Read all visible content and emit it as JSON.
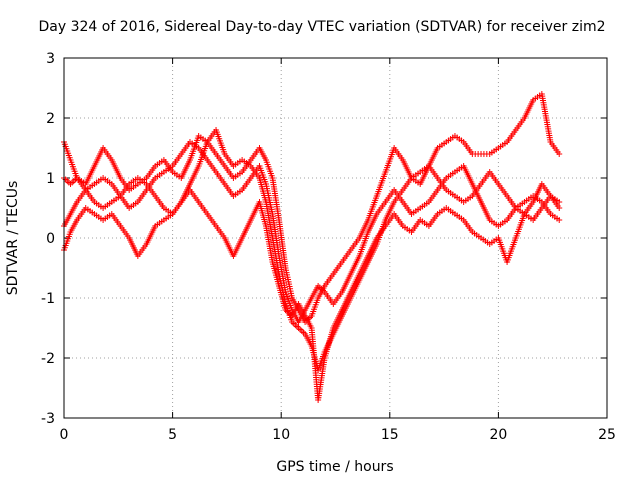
{
  "chart_data": {
    "type": "scatter",
    "title": "Day 324 of 2016, Sidereal Day-to-day VTEC variation (SDTVAR) for receiver zim2",
    "xlabel": "GPS time / hours",
    "ylabel": "SDTVAR / TECUs",
    "xlim": [
      0,
      25
    ],
    "ylim": [
      -3,
      3
    ],
    "xticks": [
      0,
      5,
      10,
      15,
      20,
      25
    ],
    "yticks": [
      -3,
      -2,
      -1,
      0,
      1,
      2,
      3
    ],
    "grid": true,
    "marker": "plus",
    "series_color": "#ff0000",
    "series": [
      {
        "x": [
          0.0,
          0.3,
          0.6,
          1.0,
          1.4,
          1.8,
          2.2,
          2.6,
          3.0,
          3.4,
          3.8,
          4.2,
          4.6,
          5.0,
          5.4,
          5.8,
          6.2,
          6.6,
          7.0,
          7.4,
          7.8,
          8.2,
          8.6,
          9.0,
          9.3,
          9.6,
          9.9,
          10.2,
          10.5,
          10.8,
          11.1,
          11.4,
          11.7,
          12.0,
          12.4,
          12.8,
          13.2,
          13.6,
          14.0,
          14.4,
          14.8,
          15.2,
          15.6,
          16.0,
          16.4,
          16.8,
          17.2,
          17.6,
          18.0,
          18.4,
          18.8,
          19.2,
          19.6,
          20.0,
          20.4,
          20.8,
          21.2,
          21.6,
          22.0,
          22.4,
          22.8
        ],
        "y": [
          1.6,
          1.3,
          1.0,
          0.9,
          1.2,
          1.5,
          1.3,
          1.0,
          0.8,
          0.9,
          1.0,
          1.2,
          1.3,
          1.1,
          1.0,
          1.3,
          1.7,
          1.6,
          1.4,
          1.2,
          1.0,
          1.1,
          1.3,
          1.5,
          1.3,
          1.0,
          0.3,
          -0.5,
          -1.0,
          -1.2,
          -1.4,
          -1.3,
          -1.0,
          -0.8,
          -0.6,
          -0.4,
          -0.2,
          0.0,
          0.3,
          0.7,
          1.1,
          1.5,
          1.3,
          1.0,
          0.9,
          1.2,
          1.5,
          1.6,
          1.7,
          1.6,
          1.4,
          1.4,
          1.4,
          1.5,
          1.6,
          1.8,
          2.0,
          2.3,
          2.4,
          1.6,
          1.4
        ]
      },
      {
        "x": [
          0.0,
          0.3,
          0.6,
          1.0,
          1.4,
          1.8,
          2.2,
          2.6,
          3.0,
          3.4,
          3.8,
          4.2,
          4.6,
          5.0,
          5.4,
          5.8,
          6.2,
          6.6,
          7.0,
          7.4,
          7.8,
          8.2,
          8.6,
          9.0,
          9.3,
          9.6,
          9.9,
          10.2,
          10.5,
          10.8,
          11.1,
          11.4,
          11.7,
          12.0,
          12.4,
          12.8,
          13.2,
          13.6,
          14.0,
          14.4,
          14.8,
          15.2,
          15.6,
          16.0,
          16.4,
          16.8,
          17.2,
          17.6,
          18.0,
          18.4,
          18.8,
          19.2,
          19.6,
          20.0,
          20.4,
          20.8,
          21.2,
          21.6,
          22.0,
          22.4,
          22.8
        ],
        "y": [
          1.0,
          0.9,
          1.0,
          0.8,
          0.6,
          0.5,
          0.6,
          0.7,
          0.9,
          1.0,
          0.9,
          0.7,
          0.5,
          0.4,
          0.6,
          0.9,
          1.2,
          1.6,
          1.8,
          1.4,
          1.2,
          1.3,
          1.2,
          1.0,
          0.6,
          0.0,
          -0.6,
          -1.1,
          -1.4,
          -1.5,
          -1.6,
          -1.8,
          -2.2,
          -1.9,
          -1.6,
          -1.3,
          -1.0,
          -0.7,
          -0.4,
          -0.1,
          0.3,
          0.6,
          0.8,
          1.0,
          1.1,
          1.2,
          1.0,
          0.8,
          0.7,
          0.6,
          0.7,
          0.9,
          1.1,
          0.9,
          0.7,
          0.5,
          0.6,
          0.7,
          0.6,
          0.4,
          0.3
        ]
      },
      {
        "x": [
          0.0,
          0.3,
          0.6,
          1.0,
          1.4,
          1.8,
          2.2,
          2.6,
          3.0,
          3.4,
          3.8,
          4.2,
          4.6,
          5.0,
          5.4,
          5.8,
          6.2,
          6.6,
          7.0,
          7.4,
          7.8,
          8.2,
          8.6,
          9.0,
          9.3,
          9.6,
          9.9,
          10.2,
          10.5,
          10.8,
          11.1,
          11.4,
          11.7,
          12.0,
          12.4,
          12.8,
          13.2,
          13.6,
          14.0,
          14.4,
          14.8,
          15.2,
          15.6,
          16.0,
          16.4,
          16.8,
          17.2,
          17.6,
          18.0,
          18.4,
          18.8,
          19.2,
          19.6,
          20.0,
          20.4,
          20.8,
          21.2,
          21.6,
          22.0,
          22.4,
          22.8
        ],
        "y": [
          0.2,
          0.4,
          0.6,
          0.8,
          0.9,
          1.0,
          0.9,
          0.7,
          0.5,
          0.6,
          0.8,
          1.0,
          1.1,
          1.2,
          1.4,
          1.6,
          1.5,
          1.3,
          1.1,
          0.9,
          0.7,
          0.8,
          1.0,
          1.2,
          0.9,
          0.4,
          -0.3,
          -0.9,
          -1.2,
          -1.4,
          -1.2,
          -1.0,
          -0.8,
          -0.9,
          -1.1,
          -0.9,
          -0.6,
          -0.3,
          0.1,
          0.4,
          0.6,
          0.8,
          0.6,
          0.4,
          0.5,
          0.6,
          0.8,
          1.0,
          1.1,
          1.2,
          0.9,
          0.6,
          0.3,
          0.2,
          0.3,
          0.5,
          0.4,
          0.3,
          0.5,
          0.7,
          0.6
        ]
      },
      {
        "x": [
          0.0,
          0.3,
          0.6,
          1.0,
          1.4,
          1.8,
          2.2,
          2.6,
          3.0,
          3.4,
          3.8,
          4.2,
          4.6,
          5.0,
          5.4,
          5.8,
          6.2,
          6.6,
          7.0,
          7.4,
          7.8,
          8.2,
          8.6,
          9.0,
          9.3,
          9.6,
          9.9,
          10.2,
          10.5,
          10.8,
          11.1,
          11.4,
          11.7,
          12.0,
          12.4,
          12.8,
          13.2,
          13.6,
          14.0,
          14.4,
          14.8,
          15.2,
          15.6,
          16.0,
          16.4,
          16.8,
          17.2,
          17.6,
          18.0,
          18.4,
          18.8,
          19.2,
          19.6,
          20.0,
          20.4,
          20.8,
          21.2,
          21.6,
          22.0,
          22.4,
          22.8
        ],
        "y": [
          -0.2,
          0.1,
          0.3,
          0.5,
          0.4,
          0.3,
          0.4,
          0.2,
          0.0,
          -0.3,
          -0.1,
          0.2,
          0.3,
          0.4,
          0.6,
          0.8,
          0.6,
          0.4,
          0.2,
          0.0,
          -0.3,
          0.0,
          0.3,
          0.6,
          0.2,
          -0.4,
          -0.8,
          -1.2,
          -1.3,
          -1.1,
          -1.3,
          -1.5,
          -2.7,
          -2.0,
          -1.5,
          -1.2,
          -0.9,
          -0.6,
          -0.3,
          0.0,
          0.2,
          0.4,
          0.2,
          0.1,
          0.3,
          0.2,
          0.4,
          0.5,
          0.4,
          0.3,
          0.1,
          0.0,
          -0.1,
          0.0,
          -0.4,
          0.0,
          0.4,
          0.6,
          0.9,
          0.7,
          0.5
        ]
      }
    ]
  }
}
